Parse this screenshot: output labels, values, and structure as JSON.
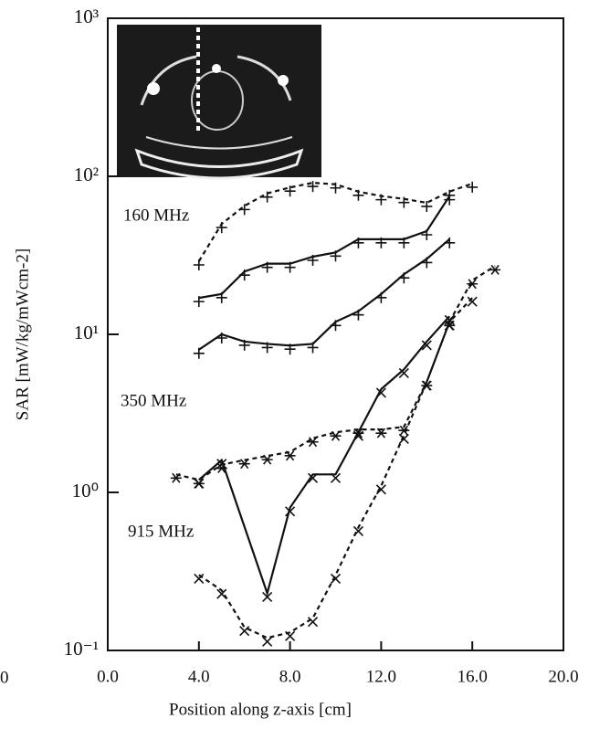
{
  "chart_data": {
    "type": "line",
    "xlabel": "Position along z-axis [cm]",
    "ylabel": "SAR [mW/kg/mWcm-2]",
    "xlim": [
      0,
      20
    ],
    "ylim": [
      0.1,
      1000
    ],
    "log_y": true,
    "xticks": [
      {
        "value": 0,
        "label": "0.0"
      },
      {
        "value": 4,
        "label": "4.0"
      },
      {
        "value": 8,
        "label": "8.0"
      },
      {
        "value": 12,
        "label": "12.0"
      },
      {
        "value": 16,
        "label": "16.0"
      },
      {
        "value": 20,
        "label": "20.0"
      }
    ],
    "yticks": [
      {
        "value": 0.1,
        "label": "10⁻¹"
      },
      {
        "value": 1,
        "label": "10⁰"
      },
      {
        "value": 10,
        "label": "10¹"
      },
      {
        "value": 100,
        "label": "10²"
      },
      {
        "value": 1000,
        "label": "10³"
      }
    ],
    "annotations": [
      "160 MHz",
      "350 MHz",
      "915 MHz",
      "0"
    ],
    "series": [
      {
        "color": "#111",
        "dash": true,
        "marker": "plus",
        "x": [
          4,
          5,
          6,
          7,
          8,
          9,
          10,
          11,
          12,
          13,
          14,
          15,
          16
        ],
        "values": [
          29,
          50,
          65,
          78,
          85,
          91,
          89,
          80,
          75,
          72,
          68,
          80,
          90
        ]
      },
      {
        "color": "#111",
        "dash": false,
        "marker": "plus",
        "x": [
          4,
          5,
          6,
          7,
          8,
          9,
          10,
          11,
          12,
          13,
          14,
          15
        ],
        "values": [
          17,
          18,
          25,
          28,
          28,
          31,
          33,
          40,
          40,
          40,
          45,
          75
        ]
      },
      {
        "color": "#111",
        "dash": false,
        "marker": "plus",
        "x": [
          4,
          5,
          6,
          7,
          8,
          9,
          10,
          11,
          12,
          13,
          14,
          15
        ],
        "values": [
          8,
          10,
          9,
          8.7,
          8.5,
          8.7,
          12,
          14,
          18,
          24,
          30,
          40
        ]
      },
      {
        "color": "#111",
        "dash": false,
        "marker": "cross",
        "x": [
          4,
          5,
          7,
          8,
          9,
          10,
          11,
          12,
          13,
          14,
          15
        ],
        "values": [
          1.2,
          1.6,
          0.23,
          0.8,
          1.3,
          1.3,
          2.4,
          4.5,
          6,
          9,
          13
        ]
      },
      {
        "color": "#111",
        "dash": true,
        "marker": "star",
        "x": [
          3,
          4,
          5,
          6,
          7,
          8,
          9,
          10,
          11,
          12,
          13,
          14,
          15,
          16,
          17
        ],
        "values": [
          1.3,
          1.2,
          1.5,
          1.6,
          1.7,
          1.8,
          2.2,
          2.4,
          2.5,
          2.5,
          2.6,
          5,
          12,
          22,
          27
        ]
      },
      {
        "color": "#111",
        "dash": true,
        "marker": "cross",
        "x": [
          4,
          5,
          6,
          7,
          8,
          9,
          10,
          11,
          12,
          13,
          14,
          15,
          16
        ],
        "values": [
          0.3,
          0.24,
          0.14,
          0.12,
          0.13,
          0.16,
          0.3,
          0.6,
          1.1,
          2.3,
          5,
          12,
          17
        ]
      }
    ]
  }
}
